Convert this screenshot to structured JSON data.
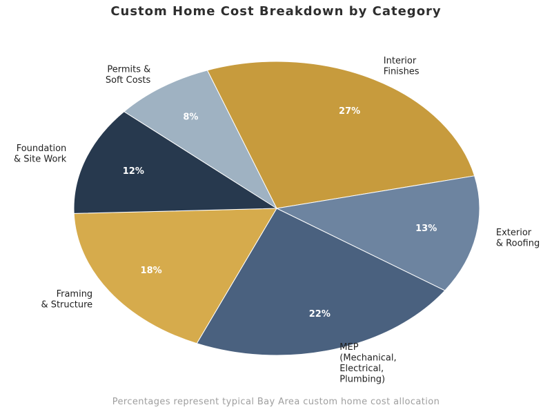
{
  "chart_data": {
    "type": "pie",
    "title": "Custom Home Cost Breakdown by Category",
    "footnote": "Percentages represent typical Bay Area custom home cost allocation",
    "legend": "none",
    "grid": "off",
    "start_angle_deg": 110,
    "direction": "clockwise",
    "slices": [
      {
        "label": "Interior Finishes",
        "label_lines": [
          "Interior",
          "Finishes"
        ],
        "value_pct": 27,
        "pct_label": "27%",
        "color": "#C79B3D"
      },
      {
        "label": "Exterior & Roofing",
        "label_lines": [
          "Exterior",
          "& Roofing"
        ],
        "value_pct": 13,
        "pct_label": "13%",
        "color": "#6D84A0"
      },
      {
        "label": "MEP (Mechanical, Electrical, Plumbing)",
        "label_lines": [
          "MEP",
          "(Mechanical,",
          "Electrical,",
          "Plumbing)"
        ],
        "value_pct": 22,
        "pct_label": "22%",
        "color": "#4A617F"
      },
      {
        "label": "Framing & Structure",
        "label_lines": [
          "Framing",
          "& Structure"
        ],
        "value_pct": 18,
        "pct_label": "18%",
        "color": "#D6AB4C"
      },
      {
        "label": "Foundation & Site Work",
        "label_lines": [
          "Foundation",
          "& Site Work"
        ],
        "value_pct": 12,
        "pct_label": "12%",
        "color": "#27394E"
      },
      {
        "label": "Permits & Soft Costs",
        "label_lines": [
          "Permits &",
          "Soft Costs"
        ],
        "value_pct": 8,
        "pct_label": "8%",
        "color": "#9FB2C2"
      }
    ],
    "colors": {
      "pct_label_text": "#FFFFFF",
      "category_label_text": "#1f1f1f",
      "title_text": "#2e2e2e",
      "footnote_text": "#9e9e9e",
      "background": "#FFFFFF"
    }
  }
}
